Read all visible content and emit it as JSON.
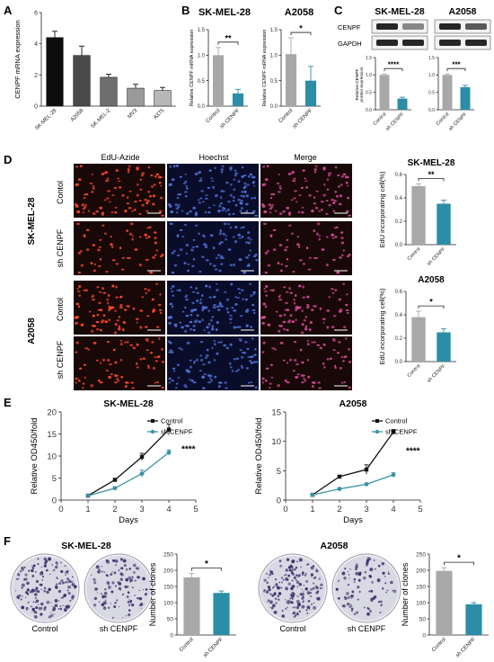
{
  "panels": {
    "A": {
      "letter": "A",
      "chart_data": {
        "type": "bar",
        "categories": [
          "SK-MEL-28",
          "A2058",
          "SK-MEL-2",
          "MV3",
          "A375"
        ],
        "values": [
          4.4,
          3.25,
          1.85,
          1.15,
          1.0
        ],
        "errors": [
          0.4,
          0.6,
          0.2,
          0.25,
          0.2
        ],
        "ylabel": "CENPF mRNA expression",
        "ylim": [
          0,
          6
        ],
        "yticks": [
          "0",
          "2",
          "4",
          "6"
        ],
        "colors": [
          "#0d0d0d",
          "#4a4a4a",
          "#6e6e6e",
          "#9a9a9a",
          "#b8b8b8"
        ]
      }
    },
    "B": {
      "letter": "B",
      "charts": [
        {
          "title": "SK-MEL-28",
          "chart_data": {
            "type": "bar",
            "categories": [
              "Control",
              "sh CENPF"
            ],
            "values": [
              1.0,
              0.25
            ],
            "errors": [
              0.15,
              0.08
            ],
            "ylabel": "Relative CENPF mRNA expression",
            "ylim": [
              0,
              1.5
            ],
            "yticks": [
              "0.0",
              "0.5",
              "1.0",
              "1.5"
            ],
            "significance": "**"
          }
        },
        {
          "title": "A2058",
          "chart_data": {
            "type": "bar",
            "categories": [
              "Control",
              "sh CENPF"
            ],
            "values": [
              1.02,
              0.5
            ],
            "errors": [
              0.32,
              0.28
            ],
            "ylabel": "Relative CENPF mRNA expression",
            "ylim": [
              0,
              1.5
            ],
            "yticks": [
              "0.0",
              "0.5",
              "1.0",
              "1.5"
            ],
            "significance": "*"
          }
        }
      ]
    },
    "C": {
      "letter": "C",
      "blot_titles": [
        "SK-MEL-28",
        "A2058"
      ],
      "blot_rows": [
        "CENPF",
        "GAPDH"
      ],
      "ylabel_lines": [
        "Relative CENPF",
        "protein expression"
      ],
      "charts": [
        {
          "chart_data": {
            "type": "bar",
            "categories": [
              "Control",
              "sh CENPF"
            ],
            "values": [
              1.0,
              0.32
            ],
            "errors": [
              0.03,
              0.04
            ],
            "ylim": [
              0,
              1.5
            ],
            "yticks": [
              "0.0",
              "0.5",
              "1.0",
              "1.5"
            ],
            "significance": "****"
          }
        },
        {
          "chart_data": {
            "type": "bar",
            "categories": [
              "Control",
              "sh CENPF"
            ],
            "values": [
              1.0,
              0.65
            ],
            "errors": [
              0.03,
              0.05
            ],
            "ylim": [
              0,
              1.5
            ],
            "yticks": [
              "0.0",
              "0.5",
              "1.0",
              "1.5"
            ],
            "significance": "***"
          }
        }
      ]
    },
    "D": {
      "letter": "D",
      "column_headers": [
        "EdU-Azide",
        "Hoechst",
        "Merge"
      ],
      "cell_lines": [
        "SK-MEL-28",
        "A2058"
      ],
      "row_labels": [
        "Contol",
        "sh CENPF",
        "Contol",
        "sh CENPF"
      ],
      "charts": [
        {
          "title": "SK-MEL-28",
          "chart_data": {
            "type": "bar",
            "categories": [
              "Control",
              "sh CENPF"
            ],
            "values": [
              0.5,
              0.35
            ],
            "errors": [
              0.02,
              0.03
            ],
            "ylabel": "EdU incorporating cell(%)",
            "ylim": [
              0,
              0.6
            ],
            "yticks": [
              "0.0",
              "0.2",
              "0.4",
              "0.6"
            ],
            "significance": "**"
          }
        },
        {
          "title": "A2058",
          "chart_data": {
            "type": "bar",
            "categories": [
              "Control",
              "sh CENPF"
            ],
            "values": [
              0.38,
              0.25
            ],
            "errors": [
              0.05,
              0.03
            ],
            "ylabel": "EdU incorporating cell(%)",
            "ylim": [
              0,
              0.6
            ],
            "yticks": [
              "0.0",
              "0.2",
              "0.4",
              "0.6"
            ],
            "significance": "*"
          }
        }
      ]
    },
    "E": {
      "letter": "E",
      "charts": [
        {
          "title": "SK-MEL-28",
          "chart_data": {
            "type": "line",
            "x": [
              1,
              2,
              3,
              4
            ],
            "series": [
              {
                "name": "Control",
                "values": [
                  1.0,
                  4.6,
                  9.8,
                  16.0
                ],
                "errors": [
                  0.2,
                  0.3,
                  0.8,
                  1.2
                ],
                "color": "#111111"
              },
              {
                "name": "sh CENPF",
                "values": [
                  1.0,
                  2.7,
                  6.0,
                  10.8
                ],
                "errors": [
                  0.2,
                  0.3,
                  0.8,
                  0.6
                ],
                "color": "#3a93a6"
              }
            ],
            "xlabel": "Days",
            "ylabel": "Relative OD450/fold",
            "xlim": [
              0,
              5
            ],
            "ylim": [
              0,
              20
            ],
            "xticks": [
              "0",
              "1",
              "2",
              "3",
              "4",
              "5"
            ],
            "yticks": [
              "0",
              "5",
              "10",
              "15",
              "20"
            ],
            "significance": "****"
          }
        },
        {
          "title": "A2058",
          "chart_data": {
            "type": "line",
            "x": [
              1,
              2,
              3,
              4
            ],
            "series": [
              {
                "name": "Control",
                "values": [
                  0.9,
                  4.0,
                  5.2,
                  11.6
                ],
                "errors": [
                  0.15,
                  0.2,
                  0.8,
                  0.4
                ],
                "color": "#111111"
              },
              {
                "name": "sh CENPF",
                "values": [
                  0.9,
                  1.9,
                  2.7,
                  4.3
                ],
                "errors": [
                  0.1,
                  0.15,
                  0.15,
                  0.35
                ],
                "color": "#3a93a6"
              }
            ],
            "xlabel": "Days",
            "ylabel": "Relative OD450/fold",
            "xlim": [
              0,
              5
            ],
            "ylim": [
              0,
              15
            ],
            "xticks": [
              "0",
              "1",
              "2",
              "3",
              "4",
              "5"
            ],
            "yticks": [
              "0",
              "5",
              "10",
              "15"
            ],
            "significance": "****"
          }
        }
      ]
    },
    "F": {
      "letter": "F",
      "groups": [
        {
          "title": "SK-MEL-28",
          "dish_labels": [
            "Control",
            "sh CENPF"
          ],
          "chart_data": {
            "type": "bar",
            "categories": [
              "Control",
              "sh CENPF"
            ],
            "values": [
              178,
              130
            ],
            "errors": [
              12,
              6
            ],
            "ylabel": "Number of clones",
            "ylim": [
              0,
              250
            ],
            "yticks": [
              "0",
              "50",
              "100",
              "150",
              "200",
              "250"
            ],
            "significance": "*"
          }
        },
        {
          "title": "A2058",
          "dish_labels": [
            "Control",
            "sh CENPF"
          ],
          "chart_data": {
            "type": "bar",
            "categories": [
              "Control",
              "sh CENPF"
            ],
            "values": [
              198,
              95
            ],
            "errors": [
              10,
              5
            ],
            "ylabel": "Number of clones",
            "ylim": [
              0,
              250
            ],
            "yticks": [
              "0",
              "50",
              "100",
              "150",
              "200",
              "250"
            ],
            "significance": "*"
          }
        }
      ]
    }
  },
  "colors": {
    "control_bar": "#a8a8a8",
    "sh_bar": "#2b8ea6",
    "sh_line": "#3a93a6",
    "micro_bg": "#180808",
    "edu_cell": "#ff4a2a",
    "hoechst_bg": "#0a0d2a",
    "hoechst_cell": "#4f6fd8",
    "merge_cell": "#d84a9a",
    "blot_bg": "#f2f2f2",
    "band": "#1a1a1a",
    "colony": "#3d2f6a",
    "dish_bg": "#d9d9e4"
  }
}
